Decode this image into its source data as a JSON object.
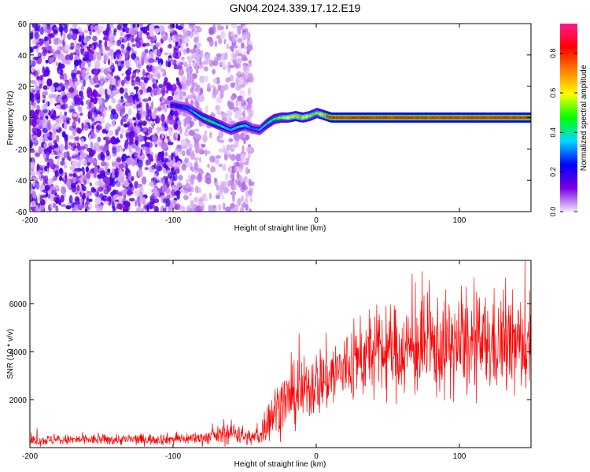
{
  "title": "GN04.2024.339.17.12.E19",
  "chart_data": [
    {
      "type": "heatmap",
      "xlabel": "Height of straight line (km)",
      "ylabel": "Frequency (Hz)",
      "xlim": [
        -200,
        150
      ],
      "ylim": [
        -60,
        60
      ],
      "xticks": [
        -200,
        -100,
        0,
        100
      ],
      "yticks": [
        -60,
        -40,
        -20,
        0,
        20,
        40,
        60
      ],
      "colorbar": {
        "label": "Normalized spectral amplitude",
        "range": [
          0,
          0.95
        ],
        "ticks": [
          0.0,
          0.2,
          0.4,
          0.6,
          0.8
        ],
        "colormap": [
          "#f3e5fb",
          "#7a00e0",
          "#0000ff",
          "#00d8ff",
          "#00ff00",
          "#ffff00",
          "#ff8000",
          "#ff0000",
          "#ff1a8c"
        ]
      },
      "noise_region_x": [
        -200,
        -45
      ],
      "signal_track": {
        "x": [
          -100,
          -90,
          -85,
          -80,
          -75,
          -70,
          -65,
          -60,
          -55,
          -50,
          -45,
          -40,
          -35,
          -30,
          -25,
          -20,
          -15,
          -10,
          -5,
          0,
          10,
          20,
          50,
          100,
          150
        ],
        "frequency": [
          8,
          6,
          3,
          0,
          -2,
          -4,
          -6,
          -8,
          -6,
          -5,
          -7,
          -8,
          -4,
          -1,
          0,
          0,
          1,
          0,
          1,
          3,
          0,
          0,
          0,
          0,
          0
        ],
        "amplitude": [
          0.25,
          0.3,
          0.4,
          0.45,
          0.5,
          0.45,
          0.4,
          0.35,
          0.45,
          0.4,
          0.3,
          0.35,
          0.45,
          0.5,
          0.55,
          0.65,
          0.7,
          0.7,
          0.6,
          0.55,
          0.9,
          0.9,
          0.9,
          0.9,
          0.9
        ]
      }
    },
    {
      "type": "line",
      "xlabel": "Height of straight line (km)",
      "ylabel": "SNR (10 * v/v)",
      "xlim": [
        -200,
        150
      ],
      "ylim": [
        0,
        7800
      ],
      "xticks": [
        -200,
        -100,
        0,
        100
      ],
      "yticks": [
        2000,
        4000,
        6000
      ],
      "series": [
        {
          "color": "#ff0000",
          "x": [
            -200,
            -175,
            -150,
            -125,
            -100,
            -80,
            -65,
            -55,
            -50,
            -45,
            -40,
            -35,
            -30,
            -25,
            -20,
            -15,
            -10,
            -5,
            0,
            10,
            20,
            30,
            40,
            50,
            60,
            70,
            80,
            90,
            100,
            110,
            120,
            130,
            140,
            150
          ],
          "mean": [
            300,
            320,
            330,
            340,
            360,
            400,
            550,
            650,
            450,
            400,
            500,
            1000,
            1500,
            1800,
            2000,
            2100,
            2300,
            2500,
            2700,
            3000,
            3300,
            3700,
            3900,
            4000,
            4050,
            4100,
            4150,
            4200,
            4250,
            4200,
            4300,
            4300,
            4250,
            4300
          ],
          "spread": [
            250,
            250,
            250,
            260,
            270,
            300,
            450,
            600,
            400,
            350,
            500,
            900,
            1200,
            1300,
            1400,
            1400,
            1500,
            1500,
            1600,
            1700,
            1800,
            1900,
            2000,
            2100,
            2100,
            2200,
            2300,
            2300,
            2300,
            2300,
            2300,
            2300,
            2300,
            2300
          ]
        }
      ]
    }
  ]
}
